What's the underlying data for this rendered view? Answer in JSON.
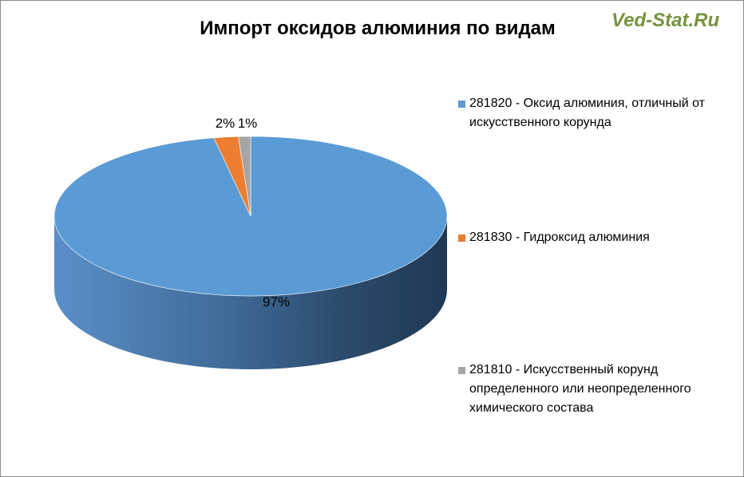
{
  "watermark": "Ved-Stat.Ru",
  "chart_data": {
    "type": "pie",
    "title": "Импорт оксидов алюминия по видам",
    "categories": [
      "281820 - Оксид алюминия, отличный от искусственного корунда",
      "281830 - Гидроксид алюминия",
      "281810 - Искусственный корунд определенного или неопределенного химического состава"
    ],
    "values": [
      97,
      2,
      1
    ],
    "data_labels": [
      "97%",
      "2%",
      "1%"
    ],
    "colors": [
      "#5b9bd5",
      "#ed7d31",
      "#a5a5a5"
    ],
    "legend_position": "right",
    "style": "3d"
  }
}
